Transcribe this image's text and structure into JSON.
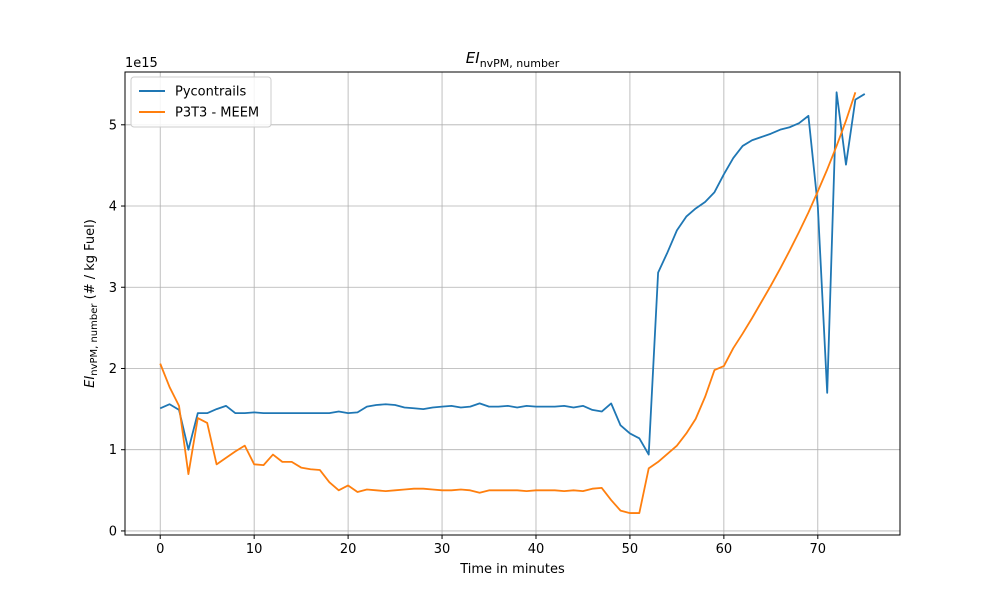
{
  "chart_data": {
    "type": "line",
    "title": "EI",
    "title_sub": "nvPM, number",
    "xlabel": "Time in minutes",
    "ylabel_main": "EI",
    "ylabel_sub": "nvPM, number",
    "ylabel_suffix": " (# / kg Fuel)",
    "offset_text": "1e15",
    "xlim": [
      -3.75,
      78.75
    ],
    "ylim": [
      -0.05,
      5.65
    ],
    "x_ticks": [
      0,
      10,
      20,
      30,
      40,
      50,
      60,
      70
    ],
    "x_tick_labels": [
      "0",
      "10",
      "20",
      "30",
      "40",
      "50",
      "60",
      "70"
    ],
    "y_ticks": [
      0,
      1,
      2,
      3,
      4,
      5
    ],
    "y_tick_labels": [
      "0",
      "1",
      "2",
      "3",
      "4",
      "5"
    ],
    "grid": true,
    "legend_position": "upper-left",
    "series": [
      {
        "name": "Pycontrails",
        "color": "#1f77b4",
        "x": [
          0,
          1,
          2,
          3,
          4,
          5,
          6,
          7,
          8,
          9,
          10,
          11,
          12,
          13,
          14,
          15,
          16,
          17,
          18,
          19,
          20,
          21,
          22,
          23,
          24,
          25,
          26,
          27,
          28,
          29,
          30,
          31,
          32,
          33,
          34,
          35,
          36,
          37,
          38,
          39,
          40,
          41,
          42,
          43,
          44,
          45,
          46,
          47,
          48,
          49,
          50,
          51,
          52,
          53,
          54,
          55,
          56,
          57,
          58,
          59,
          60,
          61,
          62,
          63,
          64,
          65,
          66,
          67,
          68,
          69,
          70,
          71,
          72,
          73,
          74,
          75
        ],
        "values": [
          1.51,
          1.56,
          1.49,
          1.0,
          1.45,
          1.45,
          1.5,
          1.54,
          1.45,
          1.45,
          1.46,
          1.45,
          1.45,
          1.45,
          1.45,
          1.45,
          1.45,
          1.45,
          1.45,
          1.47,
          1.45,
          1.46,
          1.53,
          1.55,
          1.56,
          1.55,
          1.52,
          1.51,
          1.5,
          1.52,
          1.53,
          1.54,
          1.52,
          1.53,
          1.57,
          1.53,
          1.53,
          1.54,
          1.52,
          1.54,
          1.53,
          1.53,
          1.53,
          1.54,
          1.52,
          1.54,
          1.49,
          1.47,
          1.57,
          1.3,
          1.2,
          1.14,
          0.94,
          3.18,
          3.43,
          3.7,
          3.87,
          3.97,
          4.05,
          4.17,
          4.39,
          4.59,
          4.74,
          4.81,
          4.85,
          4.89,
          4.94,
          4.97,
          5.02,
          5.11,
          4.0,
          1.7,
          5.4,
          4.51,
          5.31,
          5.38
        ]
      },
      {
        "name": "P3T3 - MEEM",
        "color": "#ff7f0e",
        "x": [
          0,
          1,
          2,
          3,
          4,
          5,
          6,
          7,
          8,
          9,
          10,
          11,
          12,
          13,
          14,
          15,
          16,
          17,
          18,
          19,
          20,
          21,
          22,
          23,
          24,
          25,
          26,
          27,
          28,
          29,
          30,
          31,
          32,
          33,
          34,
          35,
          36,
          37,
          38,
          39,
          40,
          41,
          42,
          43,
          44,
          45,
          46,
          47,
          48,
          49,
          50,
          51,
          52,
          53,
          54,
          55,
          56,
          57,
          58,
          59,
          60,
          61,
          62,
          63,
          64,
          65,
          66,
          67,
          68,
          69,
          70,
          71,
          72,
          73,
          74
        ],
        "values": [
          2.06,
          1.77,
          1.54,
          0.7,
          1.39,
          1.33,
          0.82,
          0.9,
          0.98,
          1.05,
          0.82,
          0.81,
          0.94,
          0.85,
          0.85,
          0.78,
          0.76,
          0.75,
          0.6,
          0.5,
          0.56,
          0.48,
          0.51,
          0.5,
          0.49,
          0.5,
          0.51,
          0.52,
          0.52,
          0.51,
          0.5,
          0.5,
          0.51,
          0.5,
          0.47,
          0.5,
          0.5,
          0.5,
          0.5,
          0.49,
          0.5,
          0.5,
          0.5,
          0.49,
          0.5,
          0.49,
          0.52,
          0.53,
          0.38,
          0.25,
          0.22,
          0.22,
          0.77,
          0.85,
          0.95,
          1.05,
          1.2,
          1.38,
          1.65,
          1.98,
          2.03,
          2.25,
          2.43,
          2.62,
          2.82,
          3.02,
          3.23,
          3.45,
          3.68,
          3.92,
          4.18,
          4.45,
          4.74,
          5.05,
          5.4
        ]
      }
    ]
  }
}
